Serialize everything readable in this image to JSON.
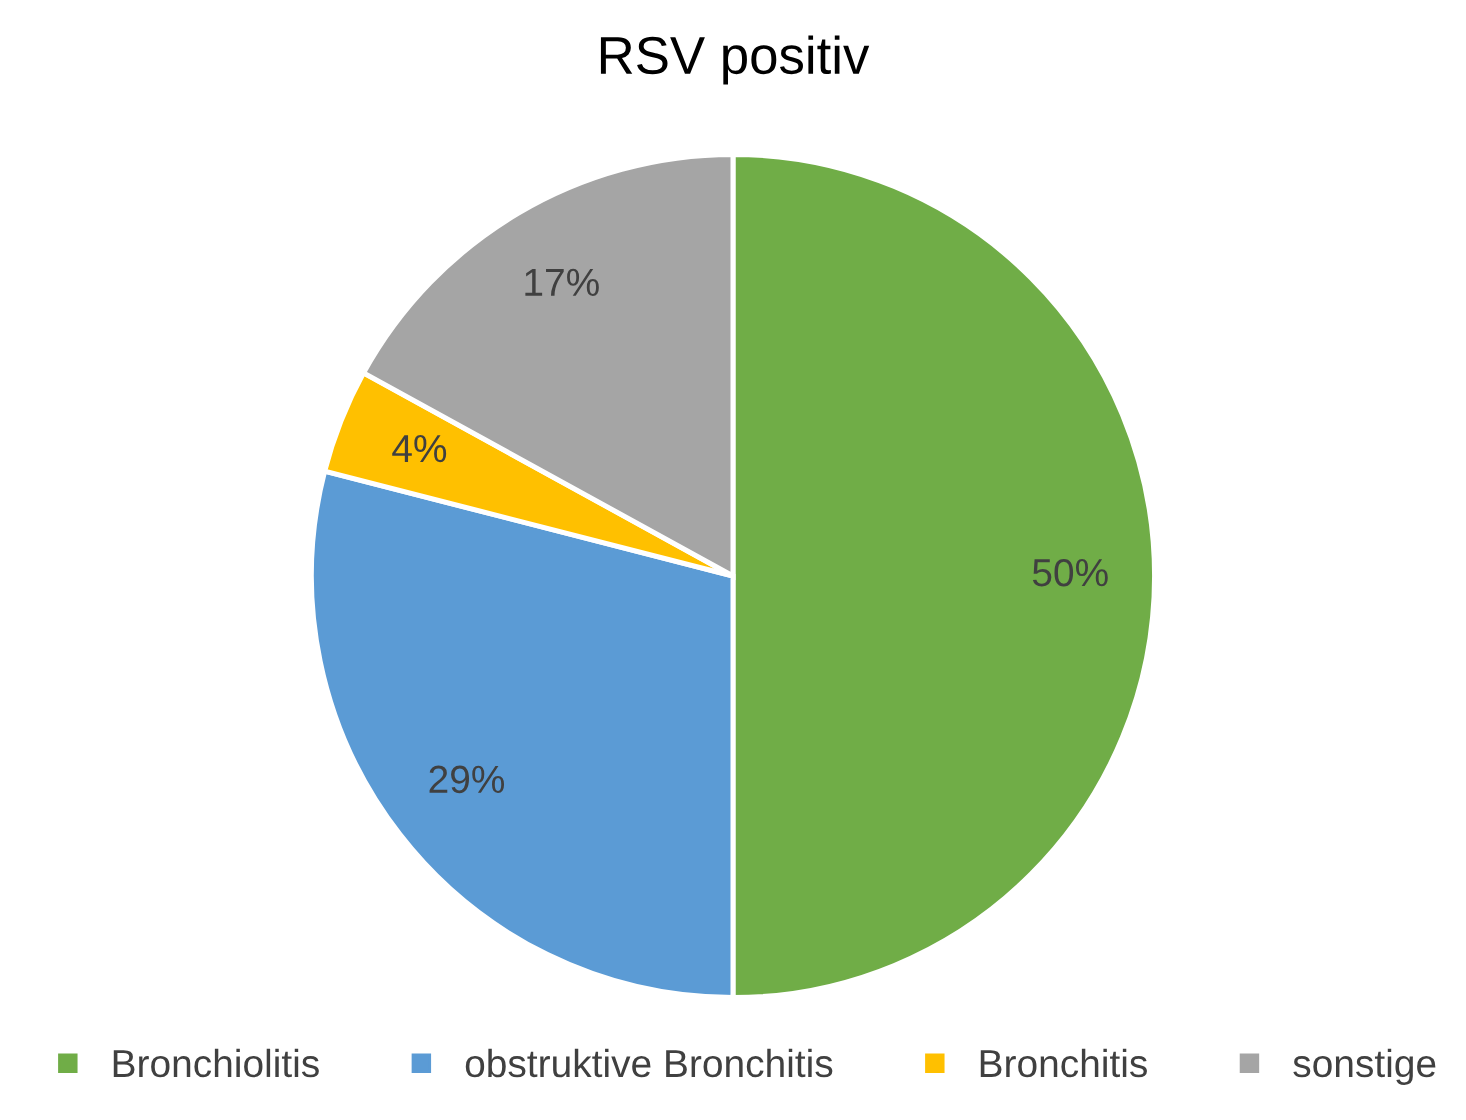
{
  "chart_data": {
    "type": "pie",
    "title": "RSV positiv",
    "categories": [
      "Bronchiolitis",
      "obstruktive Bronchitis",
      "Bronchitis",
      "sonstige"
    ],
    "values": [
      50,
      29,
      4,
      17
    ],
    "colors": [
      "#70ad47",
      "#5b9bd5",
      "#ffc000",
      "#a5a5a5"
    ],
    "value_labels": [
      "50%",
      "29%",
      "4%",
      "17%"
    ],
    "legend": "bottom"
  }
}
